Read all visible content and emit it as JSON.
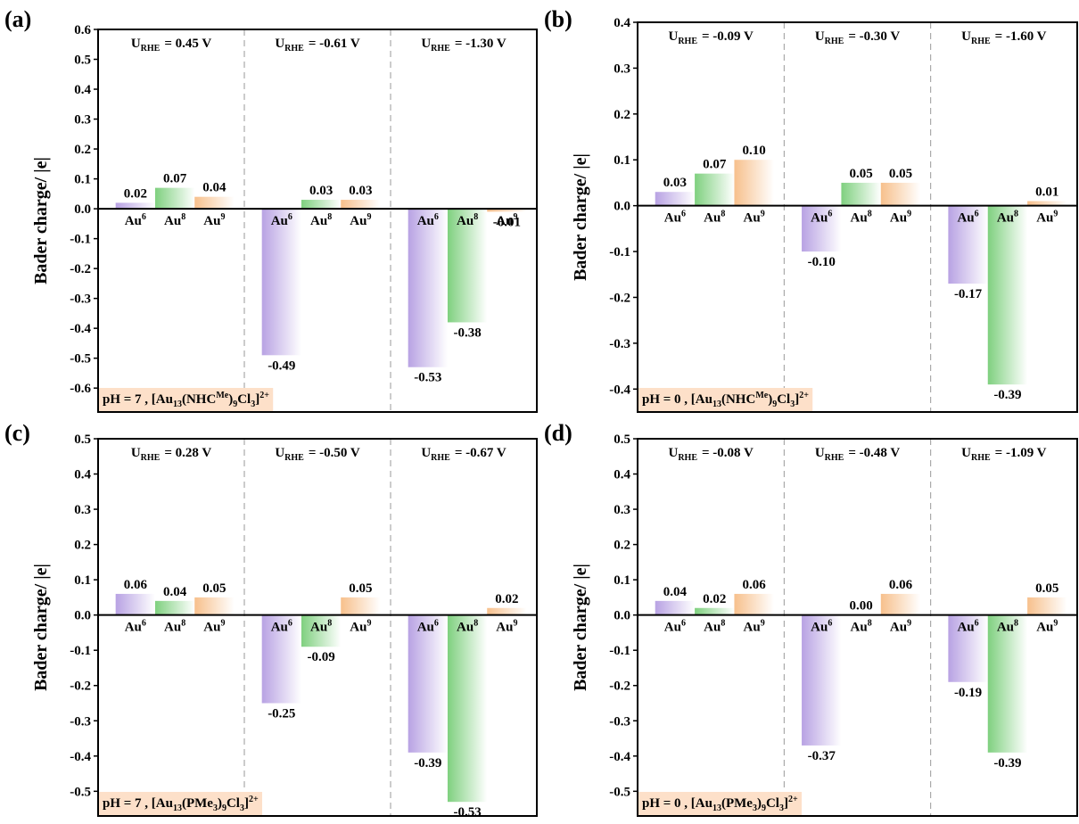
{
  "chart_data": [
    {
      "type": "bar",
      "panel_label": "(a)",
      "y_label": "Bader charge/ |e|",
      "ylim": [
        -0.68,
        0.6
      ],
      "yticks": [
        -0.6,
        -0.5,
        -0.4,
        -0.3,
        -0.2,
        -0.1,
        {
          "value": 0,
          "label": "0.0"
        },
        0.1,
        0.2,
        0.3,
        0.4,
        0.5,
        0.6
      ],
      "potential_symbol": "U",
      "potential_subscript": "RHE",
      "categories": [
        {
          "base": "Au",
          "sup": "6"
        },
        {
          "base": "Au",
          "sup": "8"
        },
        {
          "base": "Au",
          "sup": "9"
        }
      ],
      "colors": [
        "#b8a2e3",
        "#7fd07f",
        "#f7c08c"
      ],
      "groups": [
        {
          "potential": "= 0.45 V",
          "values": [
            0.02,
            0.07,
            0.04
          ],
          "value_labels": [
            "0.02",
            "0.07",
            "0.04"
          ]
        },
        {
          "potential": "= -0.61 V",
          "values": [
            -0.49,
            0.03,
            0.03
          ],
          "value_labels": [
            "-0.49",
            "0.03",
            "0.03"
          ]
        },
        {
          "potential": "= -1.30 V",
          "values": [
            -0.53,
            -0.38,
            -0.01
          ],
          "value_labels": [
            "-0.53",
            "-0.38",
            "-0.01"
          ]
        }
      ],
      "annotation": [
        {
          "text": "pH = 7 , [Au"
        },
        {
          "sub": "13"
        },
        {
          "text": "(NHC"
        },
        {
          "sup": "Me"
        },
        {
          "text": ")"
        },
        {
          "sub": "9"
        },
        {
          "text": "Cl"
        },
        {
          "sub": "3"
        },
        {
          "text": "]"
        },
        {
          "sup": "2+"
        }
      ]
    },
    {
      "type": "bar",
      "panel_label": "(b)",
      "y_label": "Bader charge/ |e|",
      "ylim": [
        -0.45,
        0.4
      ],
      "yticks": [
        -0.4,
        -0.3,
        -0.2,
        -0.1,
        {
          "value": 0,
          "label": "0.0"
        },
        0.1,
        0.2,
        0.3,
        0.4
      ],
      "potential_symbol": "U",
      "potential_subscript": "RHE",
      "categories": [
        {
          "base": "Au",
          "sup": "6"
        },
        {
          "base": "Au",
          "sup": "8"
        },
        {
          "base": "Au",
          "sup": "9"
        }
      ],
      "colors": [
        "#b8a2e3",
        "#7fd07f",
        "#f7c08c"
      ],
      "groups": [
        {
          "potential": "= -0.09 V",
          "values": [
            0.03,
            0.07,
            0.1
          ],
          "value_labels": [
            "0.03",
            "0.07",
            "0.10"
          ]
        },
        {
          "potential": "= -0.30 V",
          "values": [
            -0.1,
            0.05,
            0.05
          ],
          "value_labels": [
            "-0.10",
            "0.05",
            "0.05"
          ]
        },
        {
          "potential": "= -1.60 V",
          "values": [
            -0.17,
            -0.39,
            0.01
          ],
          "value_labels": [
            "-0.17",
            "-0.39",
            "0.01"
          ]
        }
      ],
      "annotation": [
        {
          "text": "pH = 0 , [Au"
        },
        {
          "sub": "13"
        },
        {
          "text": "(NHC"
        },
        {
          "sup": "Me"
        },
        {
          "text": ")"
        },
        {
          "sub": "9"
        },
        {
          "text": "Cl"
        },
        {
          "sub": "3"
        },
        {
          "text": "]"
        },
        {
          "sup": "2+"
        }
      ]
    },
    {
      "type": "bar",
      "panel_label": "(c)",
      "y_label": "Bader charge/ |e|",
      "ylim": [
        -0.57,
        0.5
      ],
      "yticks": [
        -0.5,
        -0.4,
        -0.3,
        -0.2,
        -0.1,
        {
          "value": 0,
          "label": "0.0"
        },
        0.1,
        0.2,
        0.3,
        0.4,
        0.5
      ],
      "potential_symbol": "U",
      "potential_subscript": "RHE",
      "categories": [
        {
          "base": "Au",
          "sup": "6"
        },
        {
          "base": "Au",
          "sup": "8"
        },
        {
          "base": "Au",
          "sup": "9"
        }
      ],
      "colors": [
        "#b8a2e3",
        "#7fd07f",
        "#f7c08c"
      ],
      "groups": [
        {
          "potential": "= 0.28 V",
          "values": [
            0.06,
            0.04,
            0.05
          ],
          "value_labels": [
            "0.06",
            "0.04",
            "0.05"
          ]
        },
        {
          "potential": "= -0.50 V",
          "values": [
            -0.25,
            -0.09,
            0.05
          ],
          "value_labels": [
            "-0.25",
            "-0.09",
            "0.05"
          ]
        },
        {
          "potential": "= -0.67 V",
          "values": [
            -0.39,
            -0.53,
            0.02
          ],
          "value_labels": [
            "-0.39",
            "-0.53",
            "0.02"
          ]
        }
      ],
      "annotation": [
        {
          "text": "pH = 7 , [Au"
        },
        {
          "sub": "13"
        },
        {
          "text": "(PMe"
        },
        {
          "sub": "3"
        },
        {
          "text": ")"
        },
        {
          "sub": "9"
        },
        {
          "text": "Cl"
        },
        {
          "sub": "3"
        },
        {
          "text": "]"
        },
        {
          "sup": "2+"
        }
      ]
    },
    {
      "type": "bar",
      "panel_label": "(d)",
      "y_label": "Bader charge/ |e|",
      "ylim": [
        -0.57,
        0.5
      ],
      "yticks": [
        -0.5,
        -0.4,
        -0.3,
        -0.2,
        -0.1,
        {
          "value": 0,
          "label": "0.0"
        },
        0.1,
        0.2,
        0.3,
        0.4,
        0.5
      ],
      "potential_symbol": "U",
      "potential_subscript": "RHE",
      "categories": [
        {
          "base": "Au",
          "sup": "6"
        },
        {
          "base": "Au",
          "sup": "8"
        },
        {
          "base": "Au",
          "sup": "9"
        }
      ],
      "colors": [
        "#b8a2e3",
        "#7fd07f",
        "#f7c08c"
      ],
      "groups": [
        {
          "potential": "= -0.08 V",
          "values": [
            0.04,
            0.02,
            0.06
          ],
          "value_labels": [
            "0.04",
            "0.02",
            "0.06"
          ]
        },
        {
          "potential": "= -0.48 V",
          "values": [
            -0.37,
            0,
            0.06
          ],
          "value_labels": [
            "-0.37",
            "0.00",
            "0.06"
          ]
        },
        {
          "potential": "= -1.09 V",
          "values": [
            -0.19,
            -0.39,
            0.05
          ],
          "value_labels": [
            "-0.19",
            "-0.39",
            "0.05"
          ]
        }
      ],
      "annotation": [
        {
          "text": "pH = 0 , [Au"
        },
        {
          "sub": "13"
        },
        {
          "text": "(PMe"
        },
        {
          "sub": "3"
        },
        {
          "text": ")"
        },
        {
          "sub": "9"
        },
        {
          "text": "Cl"
        },
        {
          "sub": "3"
        },
        {
          "text": "]"
        },
        {
          "sup": "2+"
        }
      ]
    }
  ]
}
